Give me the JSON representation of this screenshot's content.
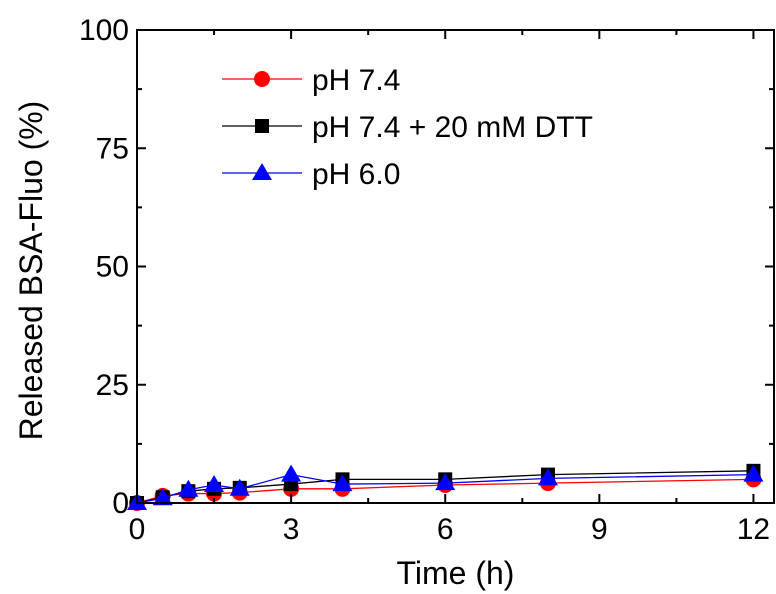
{
  "chart_data": {
    "type": "line",
    "title": "",
    "xlabel": "Time (h)",
    "ylabel": "Released BSA-Fluo (%)",
    "xlim": [
      0,
      12.4
    ],
    "ylim": [
      0,
      100
    ],
    "xticks": [
      0,
      3,
      6,
      9,
      12
    ],
    "yticks": [
      0,
      25,
      50,
      75,
      100
    ],
    "x_tick_labels": [
      "0",
      "3",
      "6",
      "9",
      "12"
    ],
    "y_tick_labels": [
      "0",
      "25",
      "50",
      "75",
      "100"
    ],
    "grid": false,
    "legend_position": "top-left",
    "series": [
      {
        "name": "pH 7.4",
        "color": "#ff0000",
        "marker": "circle",
        "x": [
          0,
          0.5,
          1,
          1.5,
          2,
          3,
          4,
          6,
          8,
          12
        ],
        "y": [
          0,
          1.5,
          2,
          2,
          2.2,
          3,
          3,
          3.8,
          4.2,
          5
        ]
      },
      {
        "name": "pH 7.4 + 20 mM DTT",
        "color": "#000000",
        "marker": "square",
        "x": [
          0,
          0.5,
          1,
          1.5,
          2,
          3,
          4,
          6,
          8,
          12
        ],
        "y": [
          0,
          1.2,
          2.5,
          3,
          3.2,
          4,
          5,
          5,
          6,
          6.8
        ]
      },
      {
        "name": "pH 6.0",
        "color": "#0000ff",
        "marker": "triangle",
        "x": [
          0,
          0.5,
          1,
          1.5,
          2,
          3,
          4,
          6,
          8,
          12
        ],
        "y": [
          0,
          1,
          2.8,
          3.8,
          3,
          6,
          4,
          4.2,
          5.2,
          6
        ]
      }
    ]
  }
}
